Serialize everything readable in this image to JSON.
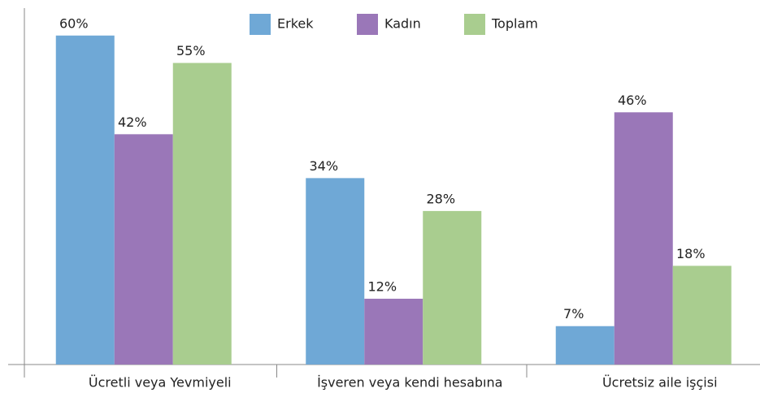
{
  "chart_data": {
    "type": "bar",
    "categories": [
      "Ücretli veya Yevmiyeli",
      "İşveren veya kendi hesabına",
      "Ücretsiz aile işçisi"
    ],
    "series": [
      {
        "name": "Erkek",
        "color": "#6fa8d6",
        "values": [
          60,
          34,
          7
        ],
        "value_labels": [
          "60%",
          "34%",
          "7%"
        ]
      },
      {
        "name": "Kadın",
        "color": "#9a77b8",
        "values": [
          42,
          12,
          46
        ],
        "value_labels": [
          "42%",
          "12%",
          "46%"
        ]
      },
      {
        "name": "Toplam",
        "color": "#a9cd8f",
        "values": [
          55,
          28,
          18
        ],
        "value_labels": [
          "55%",
          "28%",
          "18%"
        ]
      }
    ],
    "ylim": [
      0,
      65
    ]
  }
}
